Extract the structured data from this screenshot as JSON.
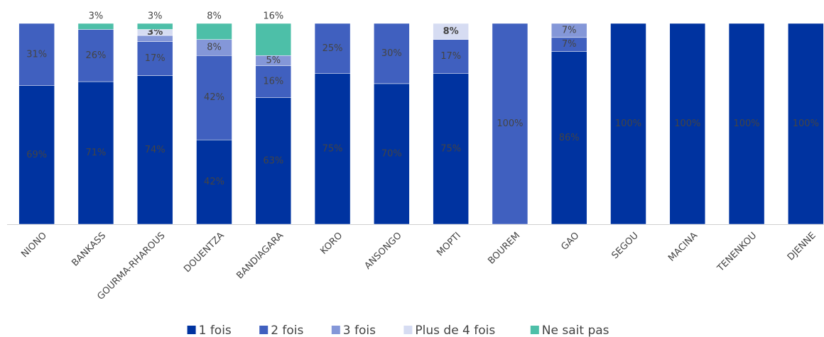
{
  "chart_data": {
    "type": "stacked_bar",
    "categories": [
      "NIONO",
      "BANKASS",
      "GOURMA-RHAROUS",
      "DOUENTZA",
      "BANDIAGARA",
      "KORO",
      "ANSONGO",
      "MOPTI",
      "BOUREM",
      "GAO",
      "SEGOU",
      "MACINA",
      "TENENKOU",
      "DJENNE"
    ],
    "ylim": [
      0,
      100
    ],
    "series": [
      {
        "name": "1 fois",
        "color": "#0033a0",
        "values": [
          69,
          71,
          74,
          42,
          63,
          75,
          70,
          75,
          0,
          86,
          100,
          100,
          100,
          100
        ],
        "value_labels": [
          "69%",
          "71%",
          "74%",
          "42%",
          "63%",
          "75%",
          "70%",
          "75%",
          null,
          "86%",
          "100%",
          "100%",
          "100%",
          "100%"
        ]
      },
      {
        "name": "2 fois",
        "color": "#4060bf",
        "values": [
          31,
          26,
          17,
          42,
          16,
          25,
          30,
          17,
          100,
          7,
          0,
          0,
          0,
          0
        ],
        "value_labels": [
          "31%",
          "26%",
          "17%",
          "42%",
          "16%",
          "25%",
          "30%",
          "17%",
          "100%",
          "7%",
          null,
          null,
          null,
          null
        ]
      },
      {
        "name": "3 fois",
        "color": "#8497d8",
        "values": [
          0,
          0,
          3,
          8,
          5,
          0,
          0,
          0,
          0,
          7,
          0,
          0,
          0,
          0
        ],
        "value_labels": [
          null,
          null,
          null,
          "8%",
          "5%",
          null,
          null,
          null,
          null,
          "7%",
          null,
          null,
          null,
          null
        ]
      },
      {
        "name": "Plus de 4 fois",
        "color": "#d6dcf2",
        "values": [
          0,
          0,
          3,
          0,
          0,
          0,
          0,
          8,
          0,
          0,
          0,
          0,
          0,
          0
        ],
        "value_labels": [
          null,
          null,
          "3%",
          null,
          null,
          null,
          null,
          "8%",
          null,
          null,
          null,
          null,
          null,
          null
        ]
      },
      {
        "name": "Ne sait pas",
        "color": "#4dbfa8",
        "values": [
          0,
          3,
          3,
          8,
          16,
          0,
          0,
          0,
          0,
          0,
          0,
          0,
          0,
          0
        ],
        "value_labels": [
          null,
          "3%",
          "3%",
          "8%",
          "16%",
          null,
          null,
          null,
          null,
          null,
          null,
          null,
          null,
          null
        ]
      }
    ]
  }
}
